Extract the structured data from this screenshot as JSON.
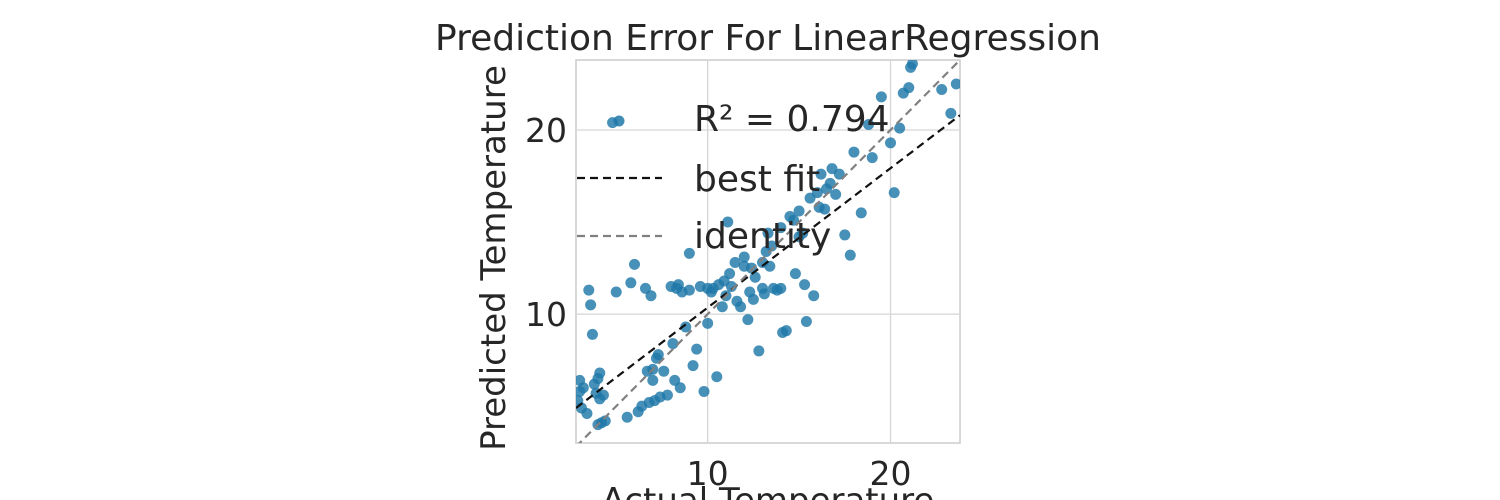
{
  "chart_data": {
    "type": "scatter",
    "title": "Prediction Error For LinearRegression",
    "xlabel": "Actual Temperature",
    "ylabel": "Predicted Temperature",
    "xlim": [
      2.8,
      23.8
    ],
    "ylim": [
      3.0,
      23.8
    ],
    "xticks": [
      10,
      20
    ],
    "yticks": [
      10,
      20
    ],
    "grid": true,
    "legend_position": "top-right",
    "colors": {
      "points": "#1f78a8",
      "best_fit": "#111111",
      "identity": "#808080"
    },
    "legend": {
      "r2_label": "R² = 0.794",
      "best_fit_label": "best fit",
      "identity_label": "identity"
    },
    "best_fit": {
      "x": [
        2.8,
        23.8
      ],
      "y": [
        4.9,
        20.8
      ]
    },
    "identity": {
      "x": [
        2.8,
        23.8
      ],
      "y": [
        2.8,
        23.8
      ]
    },
    "points": {
      "x": [
        2.9,
        3.0,
        3.0,
        3.1,
        3.2,
        3.4,
        3.5,
        3.6,
        3.7,
        3.8,
        3.9,
        4.0,
        4.0,
        4.1,
        4.1,
        4.2,
        4.3,
        4.4,
        4.8,
        5.0,
        5.6,
        5.8,
        6.0,
        6.2,
        6.4,
        6.6,
        6.7,
        6.8,
        6.9,
        7.0,
        7.0,
        7.1,
        7.2,
        7.3,
        7.4,
        7.6,
        7.8,
        8.0,
        8.1,
        8.2,
        8.3,
        8.4,
        8.5,
        8.6,
        8.8,
        9.0,
        9.0,
        9.2,
        9.4,
        9.6,
        9.8,
        10.0,
        10.0,
        10.2,
        10.3,
        10.5,
        10.6,
        10.8,
        10.9,
        11.0,
        11.1,
        11.2,
        11.3,
        11.5,
        11.6,
        11.8,
        12.0,
        12.0,
        12.2,
        12.3,
        12.4,
        12.5,
        12.6,
        12.8,
        13.0,
        13.0,
        13.1,
        13.2,
        13.3,
        13.4,
        13.5,
        13.6,
        13.8,
        14.0,
        14.0,
        14.1,
        14.3,
        14.5,
        14.7,
        14.8,
        15.0,
        15.0,
        15.2,
        15.3,
        15.4,
        15.6,
        15.8,
        16.0,
        16.1,
        16.2,
        16.4,
        16.5,
        16.7,
        16.8,
        17.0,
        17.2,
        17.5,
        17.8,
        18.0,
        18.4,
        18.8,
        19.0,
        19.5,
        20.0,
        20.2,
        20.5,
        20.7,
        21.0,
        21.1,
        21.2,
        22.8,
        23.3,
        23.6
      ],
      "y": [
        5.3,
        6.4,
        5.8,
        4.9,
        6.0,
        4.6,
        11.3,
        10.5,
        8.9,
        6.2,
        5.7,
        4.0,
        6.5,
        6.8,
        5.4,
        4.1,
        5.6,
        4.2,
        20.4,
        11.2,
        4.4,
        11.7,
        12.7,
        4.7,
        5.0,
        11.4,
        6.9,
        5.2,
        11.0,
        7.0,
        6.4,
        5.3,
        7.6,
        7.8,
        5.5,
        6.9,
        5.6,
        11.5,
        8.4,
        6.4,
        11.4,
        11.6,
        6.0,
        11.2,
        9.3,
        13.3,
        11.3,
        7.2,
        8.1,
        11.5,
        5.8,
        11.4,
        9.5,
        11.2,
        11.4,
        6.6,
        11.6,
        10.4,
        11.8,
        11.0,
        15.0,
        12.2,
        11.5,
        12.8,
        10.7,
        10.4,
        12.6,
        13.1,
        9.7,
        11.2,
        12.5,
        10.8,
        12.0,
        8.0,
        12.8,
        11.4,
        11.1,
        13.4,
        14.4,
        12.6,
        13.7,
        11.4,
        11.3,
        11.4,
        14.7,
        9.0,
        9.1,
        15.3,
        15.1,
        12.2,
        15.6,
        14.2,
        14.4,
        11.6,
        9.6,
        16.3,
        11.0,
        16.6,
        15.8,
        17.6,
        15.7,
        16.8,
        17.1,
        17.9,
        16.5,
        17.6,
        14.3,
        13.2,
        18.8,
        15.5,
        20.3,
        18.5,
        21.8,
        19.3,
        16.6,
        20.1,
        22.0,
        22.3,
        23.4,
        23.6,
        22.2,
        20.9,
        22.5
      ]
    }
  }
}
